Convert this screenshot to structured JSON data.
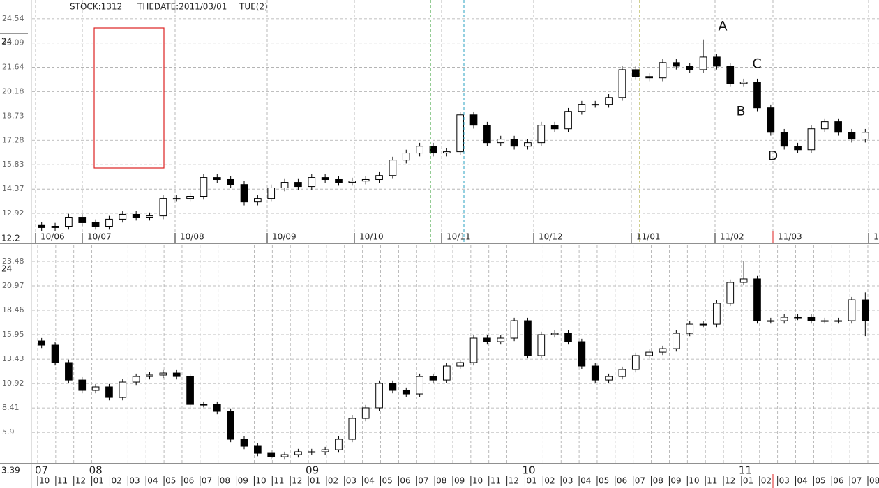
{
  "chart_data": [
    {
      "type": "candlestick",
      "header": [
        "STOCK:1312",
        "THEDATE:2011/03/01",
        "TUE(2)"
      ],
      "annotations": [
        "A",
        "B",
        "C",
        "D"
      ],
      "scale_label": "24",
      "bottom_label": "12.2",
      "x_labels": [
        "10/06",
        "10/07",
        "10/08",
        "10/09",
        "10/10",
        "10/11",
        "10/12",
        "11/01",
        "11/02",
        "11/03",
        "1"
      ],
      "ylim": [
        11.13,
        25.66
      ],
      "yticks": [
        24.54,
        23.09,
        21.64,
        20.18,
        18.73,
        17.28,
        15.83,
        14.37,
        12.92
      ],
      "grid": true,
      "candles": [
        [
          12.2,
          12.4,
          11.87,
          12.07
        ],
        [
          12.07,
          12.35,
          11.87,
          12.15
        ],
        [
          12.15,
          12.89,
          11.95,
          12.69
        ],
        [
          12.69,
          12.89,
          12.16,
          12.36
        ],
        [
          12.36,
          12.56,
          11.95,
          12.15
        ],
        [
          12.15,
          12.77,
          11.95,
          12.57
        ],
        [
          12.57,
          13.06,
          12.37,
          12.86
        ],
        [
          12.86,
          13.06,
          12.49,
          12.69
        ],
        [
          12.69,
          12.97,
          12.49,
          12.77
        ],
        [
          12.77,
          14.01,
          12.57,
          13.81
        ],
        [
          13.81,
          14.01,
          13.61,
          13.81
        ],
        [
          13.81,
          14.14,
          13.61,
          13.94
        ],
        [
          13.94,
          15.26,
          13.74,
          15.06
        ],
        [
          15.06,
          15.26,
          14.74,
          14.94
        ],
        [
          14.94,
          15.14,
          14.44,
          14.64
        ],
        [
          14.64,
          14.84,
          13.4,
          13.6
        ],
        [
          13.6,
          14.01,
          13.4,
          13.81
        ],
        [
          13.81,
          14.64,
          13.61,
          14.44
        ],
        [
          14.44,
          14.97,
          14.24,
          14.77
        ],
        [
          14.77,
          14.97,
          14.32,
          14.52
        ],
        [
          14.52,
          15.26,
          14.32,
          15.06
        ],
        [
          15.06,
          15.26,
          14.74,
          14.94
        ],
        [
          14.94,
          15.14,
          14.57,
          14.77
        ],
        [
          14.77,
          15.05,
          14.57,
          14.85
        ],
        [
          14.85,
          15.14,
          14.65,
          14.94
        ],
        [
          14.94,
          15.38,
          14.74,
          15.18
        ],
        [
          15.18,
          16.3,
          14.98,
          16.1
        ],
        [
          16.1,
          16.72,
          15.9,
          16.52
        ],
        [
          16.52,
          17.13,
          16.32,
          16.93
        ],
        [
          16.93,
          17.13,
          16.32,
          16.52
        ],
        [
          16.52,
          16.8,
          16.32,
          16.6
        ],
        [
          16.6,
          19.0,
          16.4,
          18.8
        ],
        [
          18.8,
          19.0,
          17.98,
          18.18
        ],
        [
          18.18,
          18.38,
          16.94,
          17.14
        ],
        [
          17.14,
          17.55,
          16.94,
          17.35
        ],
        [
          17.35,
          17.55,
          16.73,
          16.93
        ],
        [
          16.93,
          17.34,
          16.73,
          17.14
        ],
        [
          17.14,
          18.38,
          16.94,
          18.18
        ],
        [
          18.18,
          18.38,
          17.77,
          17.97
        ],
        [
          17.97,
          19.21,
          17.77,
          19.01
        ],
        [
          19.01,
          19.63,
          18.81,
          19.43
        ],
        [
          19.43,
          19.63,
          19.23,
          19.43
        ],
        [
          19.43,
          20.04,
          19.23,
          19.84
        ],
        [
          19.84,
          21.7,
          19.64,
          21.5
        ],
        [
          21.5,
          21.7,
          20.89,
          21.09
        ],
        [
          21.09,
          21.29,
          20.81,
          21.01
        ],
        [
          21.01,
          22.12,
          20.81,
          21.92
        ],
        [
          21.92,
          22.12,
          21.51,
          21.71
        ],
        [
          21.71,
          21.91,
          21.3,
          21.5
        ],
        [
          21.5,
          23.3,
          21.3,
          22.25
        ],
        [
          22.25,
          22.45,
          21.51,
          21.71
        ],
        [
          21.71,
          21.91,
          20.47,
          20.67
        ],
        [
          20.67,
          20.96,
          20.47,
          20.76
        ],
        [
          20.76,
          20.96,
          19.02,
          19.22
        ],
        [
          19.22,
          19.42,
          17.56,
          17.76
        ],
        [
          17.76,
          17.96,
          16.73,
          16.93
        ],
        [
          16.93,
          17.13,
          16.52,
          16.72
        ],
        [
          16.72,
          18.17,
          16.52,
          17.97
        ],
        [
          17.97,
          18.59,
          17.77,
          18.39
        ],
        [
          18.39,
          18.59,
          17.56,
          17.76
        ],
        [
          17.76,
          17.96,
          17.15,
          17.35
        ],
        [
          17.35,
          17.96,
          17.15,
          17.76
        ]
      ]
    },
    {
      "type": "candlestick",
      "scale_label": "24",
      "bottom_label": "3.39",
      "years": [
        "07",
        "08",
        "09",
        "10",
        "11"
      ],
      "months": [
        "10",
        "11",
        "12",
        "01",
        "02",
        "03",
        "04",
        "05",
        "06",
        "07",
        "08",
        "09",
        "10",
        "11",
        "12",
        "01",
        "02",
        "03",
        "04",
        "05",
        "06",
        "07",
        "08",
        "09",
        "10",
        "11",
        "12",
        "01",
        "02",
        "03",
        "04",
        "05",
        "06",
        "07",
        "08",
        "09",
        "10",
        "11",
        "12",
        "01",
        "02",
        "03",
        "04",
        "05",
        "06",
        "07",
        "08"
      ],
      "ylim": [
        2.68,
        25.13
      ],
      "yticks": [
        23.48,
        20.97,
        18.46,
        15.95,
        13.43,
        10.92,
        8.41,
        5.9
      ],
      "grid": true,
      "candles": [
        [
          15.3,
          15.6,
          14.57,
          14.87
        ],
        [
          14.87,
          15.17,
          12.78,
          13.08
        ],
        [
          13.08,
          13.38,
          10.98,
          11.28
        ],
        [
          11.28,
          11.58,
          9.91,
          10.21
        ],
        [
          10.21,
          10.87,
          9.91,
          10.57
        ],
        [
          10.57,
          10.87,
          9.19,
          9.49
        ],
        [
          9.49,
          11.37,
          9.19,
          11.07
        ],
        [
          11.07,
          11.94,
          10.77,
          11.64
        ],
        [
          11.64,
          12.09,
          11.34,
          11.79
        ],
        [
          11.79,
          12.3,
          11.49,
          12.0
        ],
        [
          12.0,
          12.3,
          11.34,
          11.64
        ],
        [
          11.64,
          11.94,
          8.47,
          8.77
        ],
        [
          8.77,
          9.07,
          8.47,
          8.77
        ],
        [
          8.77,
          9.07,
          7.76,
          8.06
        ],
        [
          8.06,
          8.36,
          4.89,
          5.19
        ],
        [
          5.19,
          5.49,
          4.17,
          4.47
        ],
        [
          4.47,
          4.77,
          3.45,
          3.75
        ],
        [
          3.75,
          4.05,
          3.09,
          3.39
        ],
        [
          3.39,
          3.91,
          3.09,
          3.61
        ],
        [
          3.61,
          4.2,
          3.31,
          3.9
        ],
        [
          3.9,
          4.2,
          3.6,
          3.9
        ],
        [
          3.9,
          4.41,
          3.6,
          4.11
        ],
        [
          4.11,
          5.49,
          3.81,
          5.19
        ],
        [
          5.19,
          7.64,
          4.89,
          7.34
        ],
        [
          7.34,
          8.72,
          7.04,
          8.42
        ],
        [
          8.42,
          11.23,
          8.12,
          10.93
        ],
        [
          10.93,
          11.23,
          9.91,
          10.21
        ],
        [
          10.21,
          10.51,
          9.55,
          9.85
        ],
        [
          9.85,
          11.94,
          9.55,
          11.64
        ],
        [
          11.64,
          11.94,
          10.98,
          11.28
        ],
        [
          11.28,
          13.02,
          10.98,
          12.72
        ],
        [
          12.72,
          13.38,
          12.42,
          13.08
        ],
        [
          13.08,
          15.89,
          12.78,
          15.59
        ],
        [
          15.59,
          15.89,
          14.93,
          15.23
        ],
        [
          15.23,
          15.89,
          14.93,
          15.59
        ],
        [
          15.59,
          17.68,
          15.29,
          17.38
        ],
        [
          17.38,
          17.68,
          13.5,
          13.8
        ],
        [
          13.8,
          16.25,
          13.5,
          15.95
        ],
        [
          15.95,
          16.39,
          15.65,
          16.09
        ],
        [
          16.09,
          16.39,
          14.93,
          15.23
        ],
        [
          15.23,
          15.53,
          12.42,
          12.72
        ],
        [
          12.72,
          13.02,
          10.98,
          11.28
        ],
        [
          11.28,
          11.94,
          10.98,
          11.64
        ],
        [
          11.64,
          12.66,
          11.34,
          12.36
        ],
        [
          12.36,
          14.1,
          12.06,
          13.8
        ],
        [
          13.8,
          14.45,
          13.5,
          14.15
        ],
        [
          14.15,
          14.81,
          13.85,
          14.51
        ],
        [
          14.51,
          16.39,
          14.21,
          16.09
        ],
        [
          16.09,
          17.32,
          15.79,
          17.02
        ],
        [
          17.02,
          17.32,
          16.72,
          17.02
        ],
        [
          17.02,
          19.48,
          16.72,
          19.18
        ],
        [
          19.18,
          21.63,
          18.88,
          21.33
        ],
        [
          21.33,
          23.48,
          21.03,
          21.69
        ],
        [
          21.69,
          21.99,
          17.08,
          17.38
        ],
        [
          17.38,
          17.68,
          17.08,
          17.38
        ],
        [
          17.38,
          18.04,
          17.08,
          17.74
        ],
        [
          17.74,
          18.04,
          17.44,
          17.74
        ],
        [
          17.74,
          18.04,
          17.08,
          17.38
        ],
        [
          17.38,
          17.68,
          17.08,
          17.38
        ],
        [
          17.38,
          17.68,
          17.08,
          17.38
        ],
        [
          17.38,
          19.83,
          17.08,
          19.53
        ],
        [
          19.53,
          20.3,
          15.8,
          17.38
        ]
      ]
    }
  ]
}
